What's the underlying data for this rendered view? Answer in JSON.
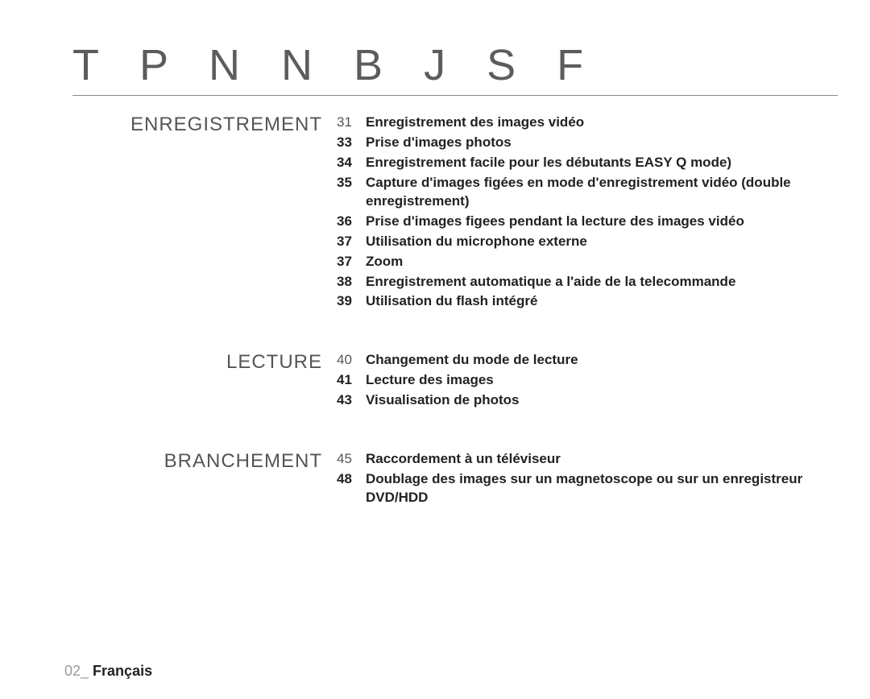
{
  "title": "T P N N B J S F",
  "sections": [
    {
      "name": "ENREGISTREMENT",
      "entries": [
        {
          "page": "31",
          "text": "Enregistrement des images vidéo"
        },
        {
          "page": "33",
          "text": "Prise d'images photos"
        },
        {
          "page": "34",
          "text": "Enregistrement facile pour les débutants EASY Q mode)"
        },
        {
          "page": "35",
          "text": "Capture d'images figées en mode d'enregistrement vidéo (double enregistrement)"
        },
        {
          "page": "36",
          "text": "Prise d'images figees pendant la lecture des images vidéo"
        },
        {
          "page": "37",
          "text": "Utilisation du microphone externe"
        },
        {
          "page": "37",
          "text": "Zoom"
        },
        {
          "page": "38",
          "text": "Enregistrement automatique a l'aide de la telecom­mande"
        },
        {
          "page": "39",
          "text": "Utilisation du flash intégré"
        }
      ]
    },
    {
      "name": "LECTURE",
      "entries": [
        {
          "page": "40",
          "text": "Changement du mode de lecture"
        },
        {
          "page": "41",
          "text": "Lecture des images"
        },
        {
          "page": "43",
          "text": "Visualisation de photos"
        }
      ]
    },
    {
      "name": "BRANCHEMENT",
      "entries": [
        {
          "page": "45",
          "text": "Raccordement à un téléviseur"
        },
        {
          "page": "48",
          "text": "Doublage des images sur un magnetoscope ou sur un enregistreur DVD/HDD"
        }
      ]
    }
  ],
  "footer": {
    "num": "02_ ",
    "label": "Français"
  }
}
